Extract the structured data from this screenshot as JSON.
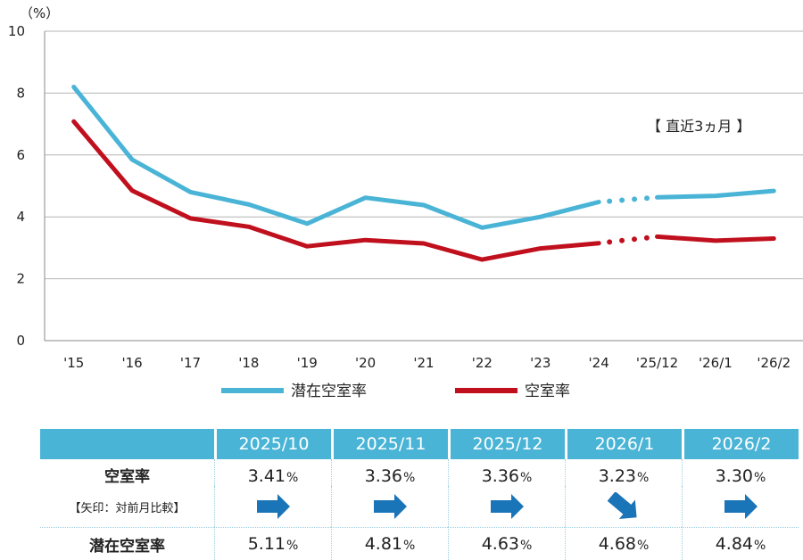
{
  "chart_data": {
    "type": "line",
    "ylabel": "（%）",
    "ylim": [
      0,
      10
    ],
    "yticks": [
      0,
      2,
      4,
      6,
      8,
      10
    ],
    "categories": [
      "'15",
      "'16",
      "'17",
      "'18",
      "'19",
      "'20",
      "'21",
      "'22",
      "'23",
      "'24",
      "'25/12",
      "'26/1",
      "'26/2"
    ],
    "annotation": "【 直近3ヵ月 】",
    "series": [
      {
        "name": "潜在空室率",
        "color": "#4ab4d6",
        "values": [
          8.2,
          5.85,
          4.8,
          4.4,
          3.78,
          4.62,
          4.38,
          3.65,
          4.0,
          4.48,
          4.63,
          4.68,
          4.84
        ]
      },
      {
        "name": "空室率",
        "color": "#c0101e",
        "values": [
          7.08,
          4.85,
          3.95,
          3.68,
          3.05,
          3.25,
          3.14,
          2.62,
          2.98,
          3.15,
          3.36,
          3.23,
          3.3
        ]
      }
    ]
  },
  "summary_table": {
    "columns": [
      "2025/10",
      "2025/11",
      "2025/12",
      "2026/1",
      "2026/2"
    ],
    "vacancy_label": "空室率",
    "arrow_note": "【矢印：対前月比較】",
    "potential_label": "潜在空室率",
    "unit": "%",
    "vacancy": [
      "3.41",
      "3.36",
      "3.36",
      "3.23",
      "3.30"
    ],
    "arrows": [
      "flat",
      "flat",
      "flat",
      "down",
      "flat"
    ],
    "potential": [
      "5.11",
      "4.81",
      "4.63",
      "4.68",
      "4.84"
    ]
  }
}
